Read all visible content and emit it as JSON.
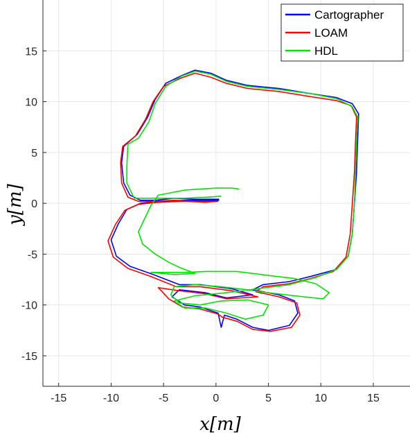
{
  "chart_data": {
    "type": "line",
    "xlabel": "x[m]",
    "ylabel": "y[m]",
    "xlim": [
      -16.5,
      18.5
    ],
    "ylim": [
      -18,
      20
    ],
    "xticks": [
      -15,
      -10,
      -5,
      0,
      5,
      10,
      15
    ],
    "yticks": [
      -15,
      -10,
      -5,
      0,
      5,
      10,
      15
    ],
    "grid": true,
    "legend_position": "top-right",
    "series": [
      {
        "name": "Cartographer",
        "color": "#0000ff",
        "points": [
          [
            0.3,
            0.4
          ],
          [
            -2.0,
            0.4
          ],
          [
            -4.0,
            0.5
          ],
          [
            -5.8,
            0.3
          ],
          [
            -7.2,
            0.3
          ],
          [
            -8.2,
            0.8
          ],
          [
            -8.8,
            2.0
          ],
          [
            -9.0,
            4.0
          ],
          [
            -8.8,
            5.6
          ],
          [
            -7.5,
            6.8
          ],
          [
            -6.5,
            8.5
          ],
          [
            -5.8,
            10.2
          ],
          [
            -4.8,
            11.8
          ],
          [
            -3.2,
            12.6
          ],
          [
            -2.0,
            13.1
          ],
          [
            -0.5,
            12.8
          ],
          [
            1.0,
            12.1
          ],
          [
            3.0,
            11.6
          ],
          [
            6.0,
            11.3
          ],
          [
            9.0,
            10.8
          ],
          [
            11.5,
            10.4
          ],
          [
            13.0,
            9.8
          ],
          [
            13.6,
            8.8
          ],
          [
            13.5,
            6.0
          ],
          [
            13.4,
            3.0
          ],
          [
            13.2,
            0.0
          ],
          [
            13.0,
            -3.0
          ],
          [
            12.6,
            -5.2
          ],
          [
            11.5,
            -6.5
          ],
          [
            9.0,
            -7.2
          ],
          [
            7.0,
            -7.7
          ],
          [
            4.5,
            -8.0
          ],
          [
            3.5,
            -8.5
          ],
          [
            6.0,
            -9.0
          ],
          [
            7.5,
            -9.6
          ],
          [
            7.8,
            -10.8
          ],
          [
            7.0,
            -12.0
          ],
          [
            5.0,
            -12.5
          ],
          [
            3.5,
            -12.2
          ],
          [
            2.0,
            -11.4
          ],
          [
            0.8,
            -11.0
          ],
          [
            0.5,
            -12.2
          ],
          [
            0.2,
            -10.8
          ],
          [
            -1.5,
            -10.2
          ],
          [
            -3.0,
            -10.0
          ],
          [
            -4.2,
            -9.2
          ],
          [
            -3.5,
            -8.5
          ],
          [
            -1.0,
            -8.8
          ],
          [
            1.0,
            -9.3
          ],
          [
            3.5,
            -9.0
          ],
          [
            1.5,
            -8.4
          ],
          [
            -1.5,
            -8.0
          ],
          [
            -3.5,
            -8.0
          ],
          [
            -6.0,
            -7.0
          ],
          [
            -8.2,
            -6.2
          ],
          [
            -9.5,
            -5.2
          ],
          [
            -10.0,
            -3.6
          ],
          [
            -9.3,
            -2.0
          ],
          [
            -8.5,
            -0.6
          ],
          [
            -7.2,
            0.0
          ],
          [
            -5.5,
            0.2
          ],
          [
            -3.0,
            0.3
          ],
          [
            -1.0,
            0.3
          ],
          [
            0.3,
            0.3
          ]
        ]
      },
      {
        "name": "LOAM",
        "color": "#ff0000",
        "points": [
          [
            0.2,
            0.2
          ],
          [
            -2.0,
            0.2
          ],
          [
            -4.0,
            0.3
          ],
          [
            -6.0,
            0.2
          ],
          [
            -7.4,
            0.2
          ],
          [
            -8.4,
            0.6
          ],
          [
            -9.0,
            2.0
          ],
          [
            -9.1,
            4.0
          ],
          [
            -8.9,
            5.6
          ],
          [
            -7.7,
            6.6
          ],
          [
            -6.7,
            8.3
          ],
          [
            -6.0,
            10.0
          ],
          [
            -5.0,
            11.5
          ],
          [
            -3.4,
            12.3
          ],
          [
            -2.0,
            12.8
          ],
          [
            -0.5,
            12.4
          ],
          [
            1.0,
            11.8
          ],
          [
            3.0,
            11.3
          ],
          [
            6.0,
            11.0
          ],
          [
            9.0,
            10.5
          ],
          [
            11.5,
            10.1
          ],
          [
            12.9,
            9.6
          ],
          [
            13.4,
            8.5
          ],
          [
            13.3,
            6.0
          ],
          [
            13.2,
            3.0
          ],
          [
            13.0,
            0.0
          ],
          [
            12.8,
            -3.0
          ],
          [
            12.4,
            -5.3
          ],
          [
            11.2,
            -6.7
          ],
          [
            9.0,
            -7.4
          ],
          [
            7.0,
            -7.9
          ],
          [
            4.5,
            -8.2
          ],
          [
            3.8,
            -8.7
          ],
          [
            6.0,
            -9.2
          ],
          [
            7.7,
            -9.8
          ],
          [
            8.0,
            -11.0
          ],
          [
            7.2,
            -12.2
          ],
          [
            5.2,
            -12.6
          ],
          [
            3.5,
            -12.4
          ],
          [
            2.0,
            -11.6
          ],
          [
            0.6,
            -11.2
          ],
          [
            0.2,
            -10.9
          ],
          [
            -1.5,
            -10.4
          ],
          [
            -3.2,
            -10.2
          ],
          [
            -4.5,
            -9.4
          ],
          [
            -5.5,
            -8.3
          ],
          [
            -3.5,
            -8.6
          ],
          [
            -1.0,
            -8.9
          ],
          [
            1.0,
            -9.4
          ],
          [
            4.0,
            -9.2
          ],
          [
            1.5,
            -8.6
          ],
          [
            -1.5,
            -8.2
          ],
          [
            -3.8,
            -8.2
          ],
          [
            -6.2,
            -7.2
          ],
          [
            -8.4,
            -6.4
          ],
          [
            -9.8,
            -5.3
          ],
          [
            -10.3,
            -3.7
          ],
          [
            -9.6,
            -2.1
          ],
          [
            -8.7,
            -0.7
          ],
          [
            -7.4,
            -0.1
          ],
          [
            -5.5,
            0.1
          ],
          [
            -3.0,
            0.2
          ],
          [
            -1.0,
            0.1
          ],
          [
            0.2,
            0.2
          ]
        ]
      },
      {
        "name": "HDL",
        "color": "#00e400",
        "points": [
          [
            2.2,
            1.4
          ],
          [
            1.5,
            1.5
          ],
          [
            0.0,
            1.5
          ],
          [
            -1.5,
            1.4
          ],
          [
            -3.0,
            1.3
          ],
          [
            -4.5,
            1.0
          ],
          [
            -5.5,
            0.8
          ],
          [
            -6.2,
            -0.2
          ],
          [
            -6.8,
            -1.5
          ],
          [
            -7.4,
            -2.8
          ],
          [
            -7.0,
            -4.0
          ],
          [
            -5.8,
            -5.0
          ],
          [
            -4.5,
            -5.8
          ],
          [
            -3.5,
            -6.3
          ],
          [
            -2.0,
            -6.9
          ],
          [
            -4.0,
            -7.0
          ],
          [
            -6.2,
            -6.8
          ],
          [
            -3.0,
            -6.8
          ],
          [
            -1.0,
            -6.7
          ],
          [
            2.0,
            -6.7
          ],
          [
            5.0,
            -7.1
          ],
          [
            7.5,
            -7.4
          ],
          [
            9.5,
            -7.9
          ],
          [
            10.8,
            -8.8
          ],
          [
            10.2,
            -9.4
          ],
          [
            7.5,
            -9.1
          ],
          [
            5.0,
            -8.8
          ],
          [
            3.0,
            -8.5
          ],
          [
            0.5,
            -8.2
          ],
          [
            -2.0,
            -8.0
          ],
          [
            -4.0,
            -8.2
          ],
          [
            -4.3,
            -9.0
          ],
          [
            -3.5,
            -9.8
          ],
          [
            -1.5,
            -10.0
          ],
          [
            0.5,
            -9.6
          ],
          [
            3.0,
            -9.5
          ],
          [
            5.0,
            -10.0
          ],
          [
            4.5,
            -11.0
          ],
          [
            2.8,
            -11.4
          ],
          [
            1.0,
            -10.8
          ],
          [
            -1.0,
            -10.3
          ],
          [
            -3.0,
            -10.3
          ],
          [
            -4.0,
            -9.6
          ],
          [
            -2.0,
            -9.1
          ],
          [
            1.0,
            -8.8
          ],
          [
            4.0,
            -8.4
          ],
          [
            7.0,
            -8.0
          ],
          [
            9.5,
            -7.3
          ],
          [
            11.5,
            -6.5
          ],
          [
            12.6,
            -5.2
          ],
          [
            13.0,
            -3.0
          ],
          [
            13.2,
            0.0
          ],
          [
            13.3,
            3.0
          ],
          [
            13.4,
            6.0
          ],
          [
            13.5,
            8.5
          ],
          [
            13.0,
            9.5
          ],
          [
            11.5,
            10.3
          ],
          [
            9.0,
            10.8
          ],
          [
            6.0,
            11.2
          ],
          [
            3.0,
            11.5
          ],
          [
            1.0,
            12.0
          ],
          [
            -0.5,
            12.7
          ],
          [
            -2.0,
            13.0
          ],
          [
            -3.3,
            12.5
          ],
          [
            -4.8,
            11.5
          ],
          [
            -5.8,
            9.8
          ],
          [
            -6.4,
            8.0
          ],
          [
            -7.4,
            6.4
          ],
          [
            -8.4,
            5.8
          ],
          [
            -8.5,
            3.6
          ],
          [
            -8.5,
            2.0
          ],
          [
            -7.8,
            0.5
          ],
          [
            -5.5,
            0.5
          ],
          [
            -3.0,
            0.5
          ],
          [
            -1.0,
            0.6
          ],
          [
            0.5,
            0.7
          ]
        ]
      }
    ]
  }
}
